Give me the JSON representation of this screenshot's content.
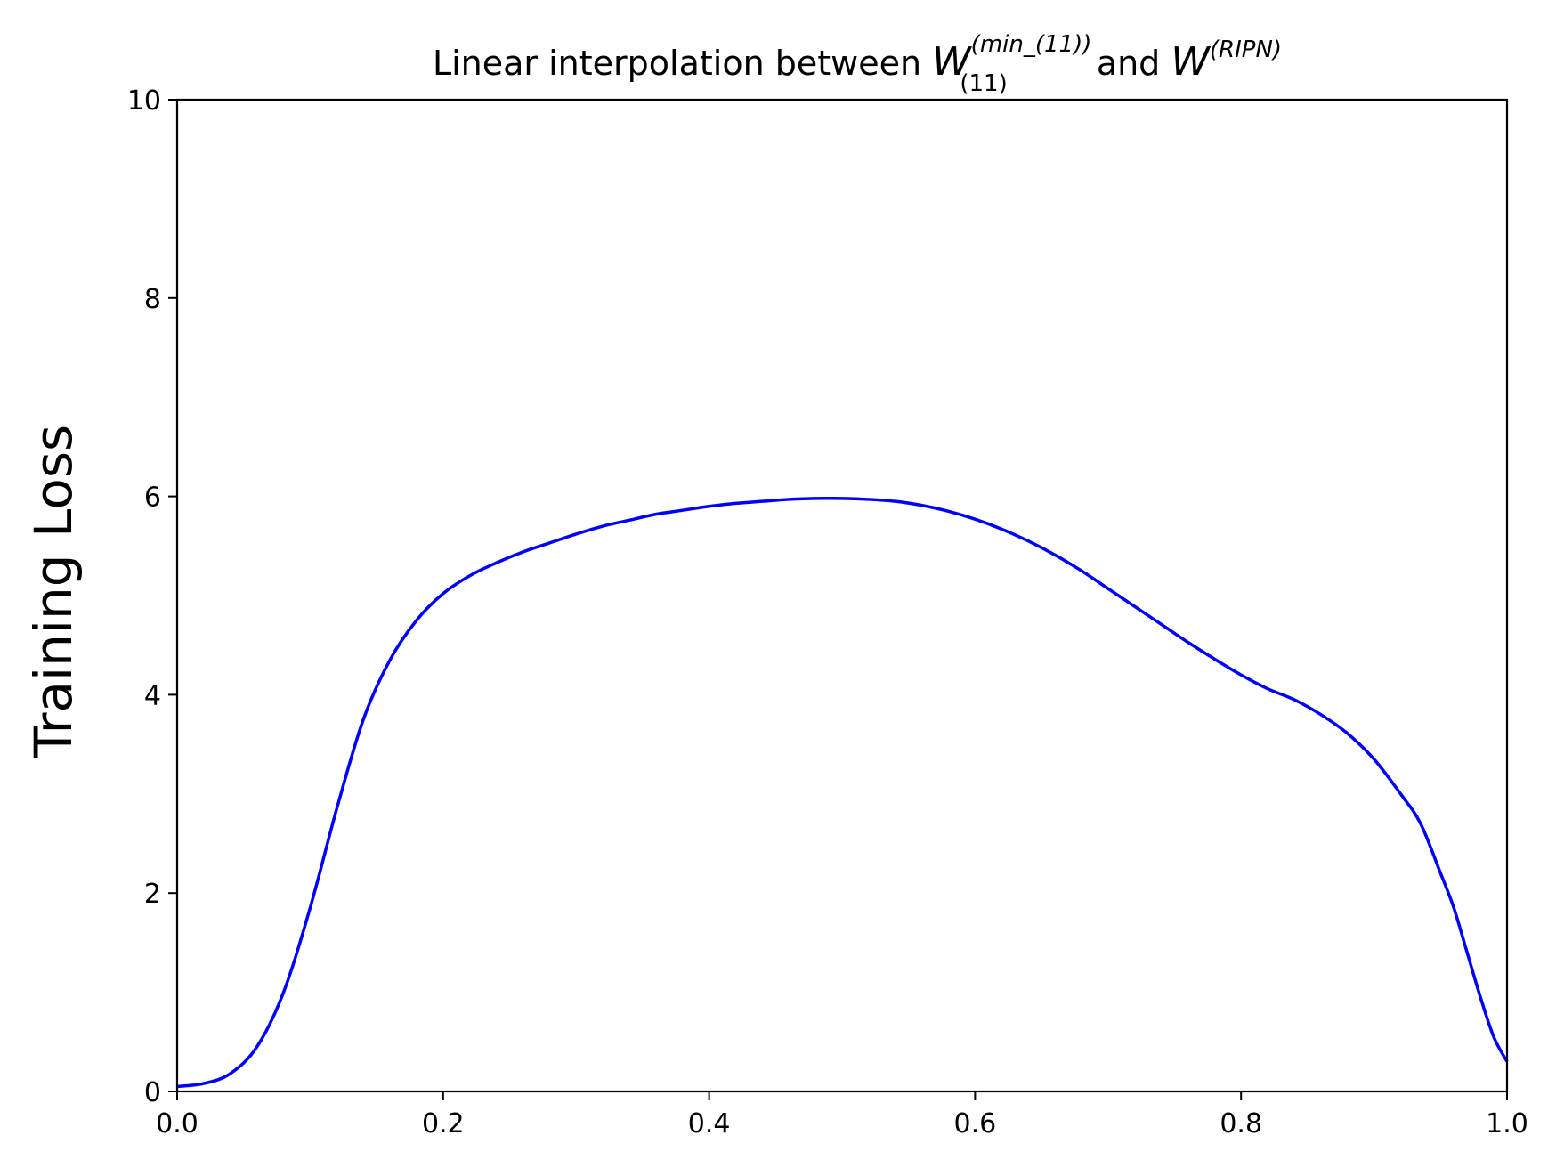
{
  "chart_data": {
    "type": "line",
    "title": {
      "prefix": "Linear interpolation between ",
      "a_base": "W",
      "a_sup": "(min_(11))",
      "a_sub": "(11)",
      "middle": " and ",
      "b_base": "W",
      "b_sup": "(RIPN)"
    },
    "xlabel": "",
    "ylabel": "Training Loss",
    "xlim": [
      0.0,
      1.0
    ],
    "ylim": [
      0,
      10
    ],
    "xticks": [
      "0.0",
      "0.2",
      "0.4",
      "0.6",
      "0.8",
      "1.0"
    ],
    "yticks": [
      "0",
      "2",
      "4",
      "6",
      "8",
      "10"
    ],
    "grid": false,
    "series": [
      {
        "color": "#0000ff",
        "x": [
          0.0,
          0.02,
          0.04,
          0.06,
          0.08,
          0.1,
          0.12,
          0.14,
          0.16,
          0.18,
          0.2,
          0.22,
          0.24,
          0.26,
          0.28,
          0.3,
          0.32,
          0.34,
          0.36,
          0.38,
          0.4,
          0.42,
          0.44,
          0.46,
          0.48,
          0.5,
          0.52,
          0.54,
          0.56,
          0.58,
          0.6,
          0.62,
          0.64,
          0.66,
          0.68,
          0.7,
          0.72,
          0.74,
          0.76,
          0.78,
          0.8,
          0.82,
          0.84,
          0.86,
          0.88,
          0.9,
          0.92,
          0.935,
          0.95,
          0.96,
          0.97,
          0.98,
          0.99,
          1.0
        ],
        "y": [
          0.05,
          0.08,
          0.18,
          0.45,
          1.0,
          1.85,
          2.85,
          3.75,
          4.35,
          4.75,
          5.02,
          5.2,
          5.33,
          5.44,
          5.53,
          5.62,
          5.7,
          5.76,
          5.82,
          5.86,
          5.9,
          5.93,
          5.95,
          5.97,
          5.98,
          5.98,
          5.97,
          5.95,
          5.91,
          5.85,
          5.77,
          5.67,
          5.55,
          5.41,
          5.25,
          5.07,
          4.89,
          4.71,
          4.53,
          4.36,
          4.2,
          4.06,
          3.95,
          3.8,
          3.61,
          3.35,
          3.0,
          2.7,
          2.2,
          1.85,
          1.4,
          0.95,
          0.55,
          0.3
        ]
      }
    ]
  }
}
